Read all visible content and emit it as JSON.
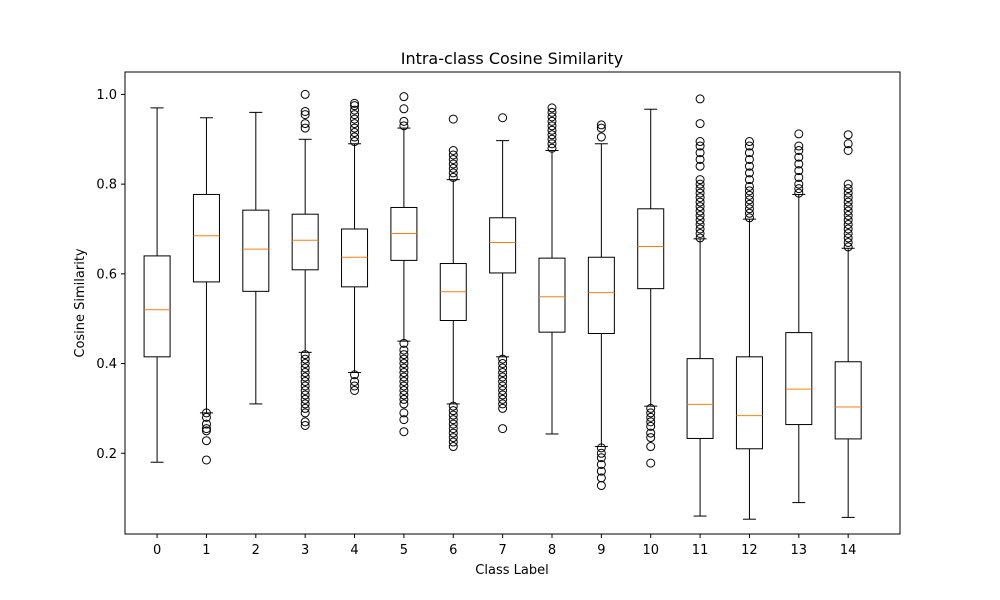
{
  "chart_data": {
    "type": "box",
    "title": "Intra-class Cosine Similarity",
    "xlabel": "Class Label",
    "ylabel": "Cosine Similarity",
    "ylim": [
      0.02,
      1.05
    ],
    "yticks": [
      "0.2",
      "0.4",
      "0.6",
      "0.8",
      "1.0"
    ],
    "ytick_values": [
      0.2,
      0.4,
      0.6,
      0.8,
      1.0
    ],
    "grid": false,
    "median_color": "#ff7f0e",
    "box_color": "#000000",
    "categories": [
      "0",
      "1",
      "2",
      "3",
      "4",
      "5",
      "6",
      "7",
      "8",
      "9",
      "10",
      "11",
      "12",
      "13",
      "14"
    ],
    "boxes": [
      {
        "label": "0",
        "whisker_low": 0.18,
        "q1": 0.415,
        "median": 0.52,
        "q3": 0.64,
        "whisker_high": 0.97,
        "outliers_low": [],
        "outliers_high": []
      },
      {
        "label": "1",
        "whisker_low": 0.29,
        "q1": 0.582,
        "median": 0.685,
        "q3": 0.777,
        "whisker_high": 0.948,
        "outliers_low": [
          0.29,
          0.28,
          0.265,
          0.255,
          0.25,
          0.228,
          0.185
        ],
        "outliers_high": []
      },
      {
        "label": "2",
        "whisker_low": 0.31,
        "q1": 0.561,
        "median": 0.655,
        "q3": 0.742,
        "whisker_high": 0.96,
        "outliers_low": [],
        "outliers_high": []
      },
      {
        "label": "3",
        "whisker_low": 0.425,
        "q1": 0.609,
        "median": 0.675,
        "q3": 0.733,
        "whisker_high": 0.9,
        "outliers_low": [
          0.42,
          0.41,
          0.4,
          0.39,
          0.38,
          0.37,
          0.36,
          0.35,
          0.34,
          0.33,
          0.32,
          0.31,
          0.3,
          0.29,
          0.27,
          0.262
        ],
        "outliers_high": [
          0.935,
          0.925,
          0.955,
          0.962,
          1.0
        ]
      },
      {
        "label": "4",
        "whisker_low": 0.38,
        "q1": 0.571,
        "median": 0.637,
        "q3": 0.7,
        "whisker_high": 0.89,
        "outliers_low": [
          0.375,
          0.36,
          0.35,
          0.34
        ],
        "outliers_high": [
          0.895,
          0.905,
          0.915,
          0.925,
          0.935,
          0.945,
          0.955,
          0.965,
          0.975,
          0.98
        ]
      },
      {
        "label": "5",
        "whisker_low": 0.45,
        "q1": 0.63,
        "median": 0.69,
        "q3": 0.748,
        "whisker_high": 0.925,
        "outliers_low": [
          0.445,
          0.43,
          0.42,
          0.41,
          0.4,
          0.39,
          0.38,
          0.37,
          0.36,
          0.35,
          0.34,
          0.33,
          0.32,
          0.31,
          0.29,
          0.275,
          0.248
        ],
        "outliers_high": [
          0.93,
          0.94,
          0.968,
          0.995
        ]
      },
      {
        "label": "6",
        "whisker_low": 0.31,
        "q1": 0.496,
        "median": 0.56,
        "q3": 0.623,
        "whisker_high": 0.81,
        "outliers_low": [
          0.305,
          0.295,
          0.285,
          0.275,
          0.265,
          0.255,
          0.245,
          0.235,
          0.225,
          0.215
        ],
        "outliers_high": [
          0.815,
          0.825,
          0.835,
          0.845,
          0.855,
          0.865,
          0.875,
          0.945
        ]
      },
      {
        "label": "7",
        "whisker_low": 0.415,
        "q1": 0.602,
        "median": 0.67,
        "q3": 0.725,
        "whisker_high": 0.897,
        "outliers_low": [
          0.41,
          0.4,
          0.39,
          0.38,
          0.37,
          0.36,
          0.35,
          0.34,
          0.33,
          0.32,
          0.31,
          0.3,
          0.255
        ],
        "outliers_high": [
          0.948
        ]
      },
      {
        "label": "8",
        "whisker_low": 0.243,
        "q1": 0.47,
        "median": 0.549,
        "q3": 0.635,
        "whisker_high": 0.875,
        "outliers_low": [],
        "outliers_high": [
          0.88,
          0.89,
          0.9,
          0.91,
          0.92,
          0.93,
          0.94,
          0.95,
          0.96,
          0.97
        ]
      },
      {
        "label": "9",
        "whisker_low": 0.215,
        "q1": 0.467,
        "median": 0.558,
        "q3": 0.637,
        "whisker_high": 0.89,
        "outliers_low": [
          0.212,
          0.2,
          0.19,
          0.175,
          0.16,
          0.145,
          0.128
        ],
        "outliers_high": [
          0.905,
          0.925,
          0.932
        ]
      },
      {
        "label": "10",
        "whisker_low": 0.305,
        "q1": 0.567,
        "median": 0.661,
        "q3": 0.745,
        "whisker_high": 0.967,
        "outliers_low": [
          0.3,
          0.29,
          0.28,
          0.27,
          0.26,
          0.245,
          0.235,
          0.215,
          0.178
        ],
        "outliers_high": []
      },
      {
        "label": "11",
        "whisker_low": 0.06,
        "q1": 0.233,
        "median": 0.309,
        "q3": 0.411,
        "whisker_high": 0.678,
        "outliers_low": [],
        "outliers_high": [
          0.68,
          0.69,
          0.7,
          0.71,
          0.72,
          0.73,
          0.74,
          0.75,
          0.76,
          0.77,
          0.78,
          0.79,
          0.8,
          0.81,
          0.84,
          0.855,
          0.87,
          0.885,
          0.895,
          0.935,
          0.99
        ]
      },
      {
        "label": "12",
        "whisker_low": 0.053,
        "q1": 0.21,
        "median": 0.284,
        "q3": 0.415,
        "whisker_high": 0.722,
        "outliers_low": [],
        "outliers_high": [
          0.725,
          0.735,
          0.745,
          0.755,
          0.765,
          0.775,
          0.785,
          0.795,
          0.81,
          0.825,
          0.84,
          0.855,
          0.87,
          0.885,
          0.895
        ]
      },
      {
        "label": "13",
        "whisker_low": 0.09,
        "q1": 0.264,
        "median": 0.343,
        "q3": 0.469,
        "whisker_high": 0.777,
        "outliers_low": [],
        "outliers_high": [
          0.78,
          0.79,
          0.8,
          0.815,
          0.83,
          0.845,
          0.86,
          0.875,
          0.885,
          0.912
        ]
      },
      {
        "label": "14",
        "whisker_low": 0.057,
        "q1": 0.232,
        "median": 0.303,
        "q3": 0.404,
        "whisker_high": 0.657,
        "outliers_low": [],
        "outliers_high": [
          0.66,
          0.67,
          0.68,
          0.69,
          0.7,
          0.71,
          0.72,
          0.73,
          0.74,
          0.75,
          0.76,
          0.77,
          0.78,
          0.79,
          0.8,
          0.875,
          0.89,
          0.91
        ]
      }
    ]
  }
}
